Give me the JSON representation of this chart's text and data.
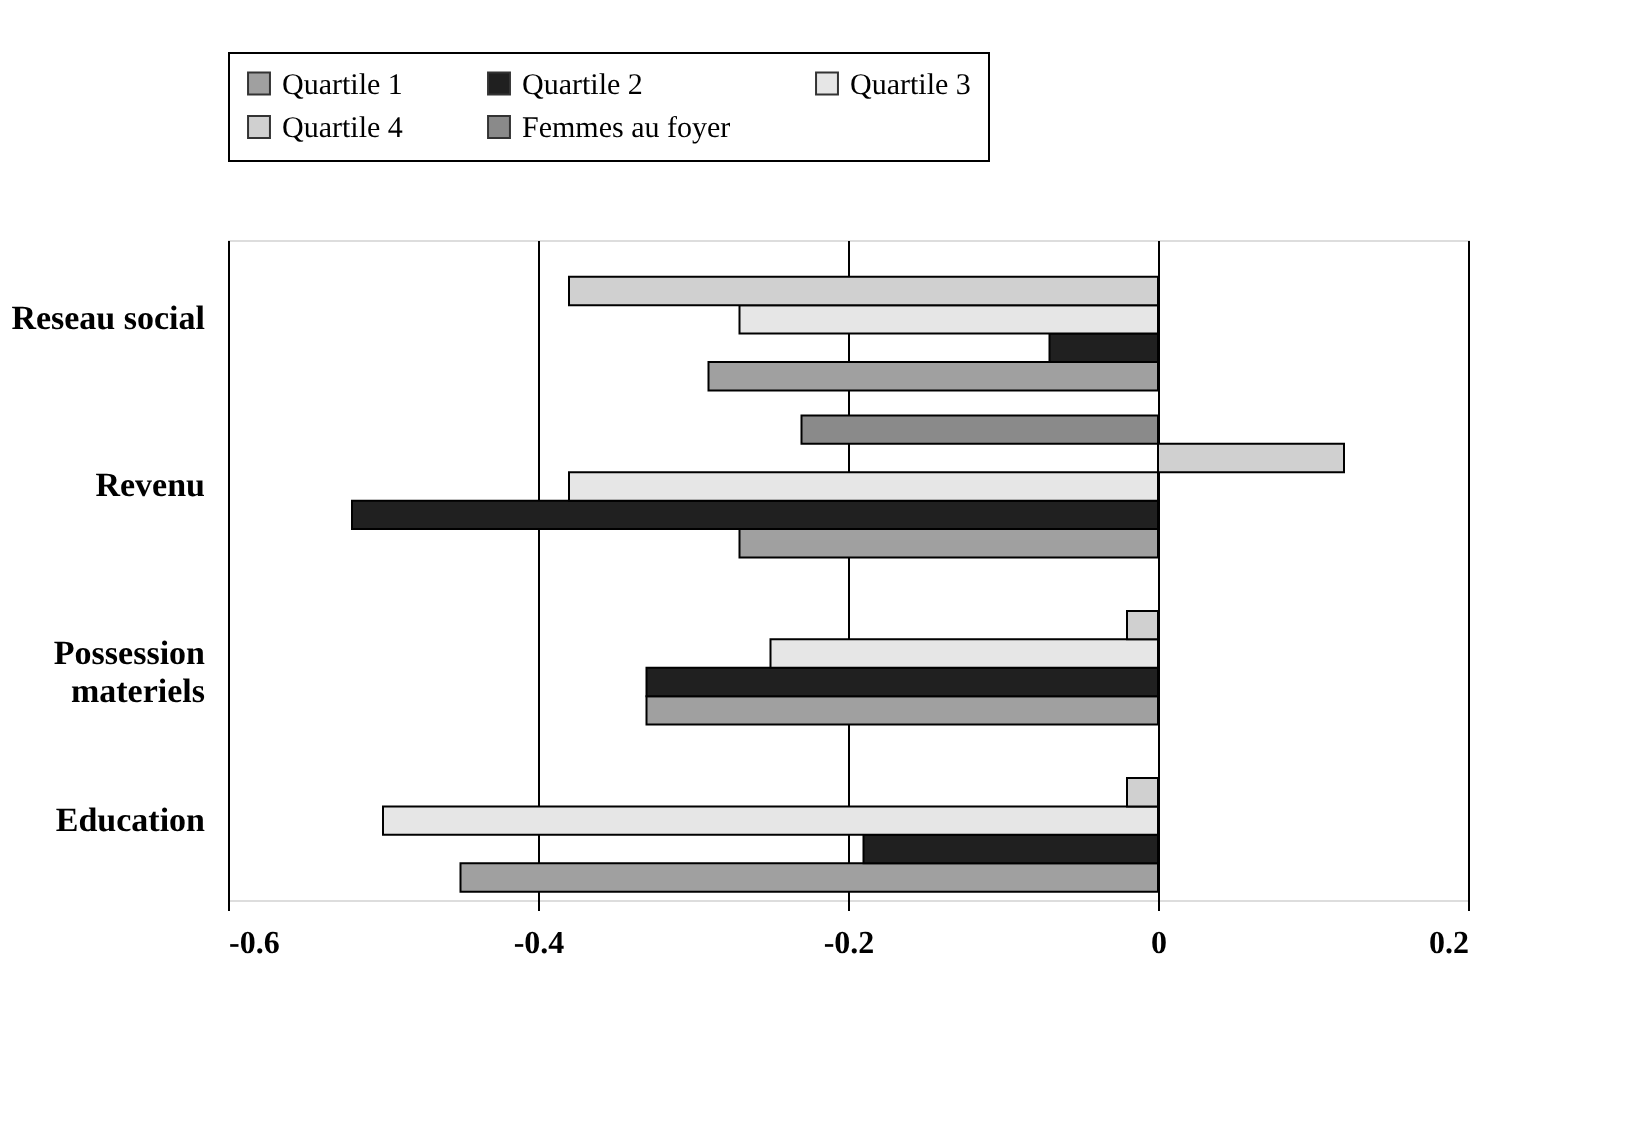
{
  "chart_data": {
    "type": "bar",
    "orientation": "horizontal",
    "categories": [
      "Reseau social",
      "Revenu",
      "Possession materiels",
      "Education"
    ],
    "series": [
      {
        "name": "Quartile 1",
        "color": "#a0a0a0",
        "values": [
          -0.29,
          -0.27,
          -0.33,
          -0.45
        ]
      },
      {
        "name": "Quartile 2",
        "color": "#202020",
        "values": [
          -0.07,
          -0.52,
          -0.33,
          -0.19
        ]
      },
      {
        "name": "Quartile 3",
        "color": "#e6e6e6",
        "values": [
          -0.27,
          -0.38,
          -0.25,
          -0.5
        ]
      },
      {
        "name": "Quartile 4",
        "color": "#d0d0d0",
        "values": [
          -0.38,
          0.12,
          -0.02,
          -0.02
        ]
      },
      {
        "name": "Femmes au foyer",
        "color": "#8a8a8a",
        "values": [
          null,
          -0.23,
          null,
          null
        ]
      }
    ],
    "xlim": [
      -0.6,
      0.2
    ],
    "xticks": [
      -0.6,
      -0.4,
      -0.2,
      0,
      0.2
    ],
    "grid": "x",
    "legend": "top"
  }
}
